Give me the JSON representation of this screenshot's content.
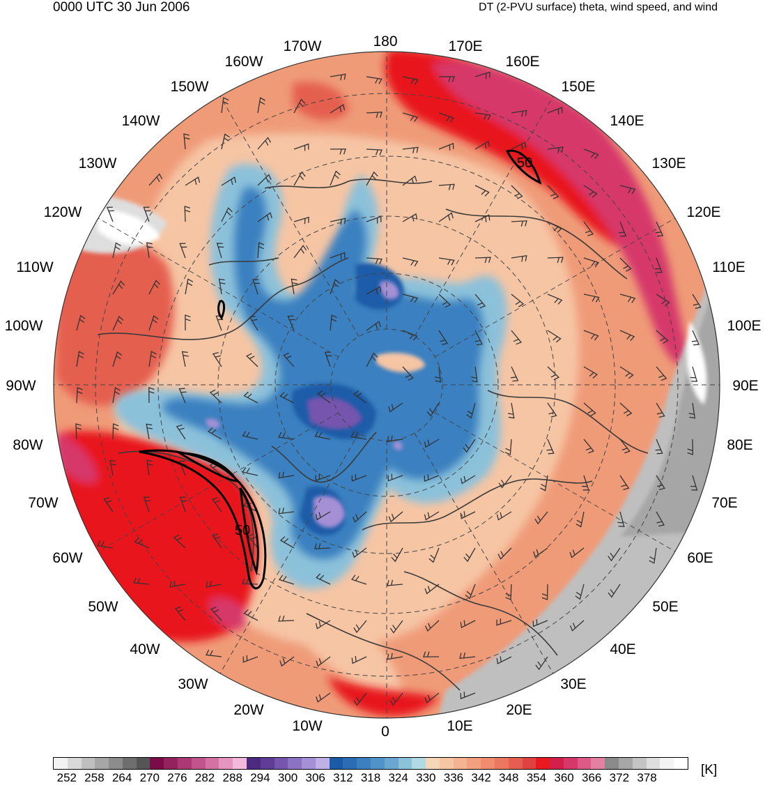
{
  "header": {
    "valid_time": "0000 UTC 30 Jun 2006",
    "field_title": "DT (2-PVU surface) theta, wind speed, and wind"
  },
  "map": {
    "projection": "north-polar-stereographic",
    "longitude_labels": [
      "180",
      "170E",
      "160E",
      "150E",
      "140E",
      "130E",
      "120E",
      "110E",
      "100E",
      "90E",
      "80E",
      "70E",
      "60E",
      "50E",
      "40E",
      "30E",
      "20E",
      "10E",
      "0",
      "10W",
      "20W",
      "30W",
      "40W",
      "50W",
      "60W",
      "70W",
      "80W",
      "90W",
      "100W",
      "110W",
      "120W",
      "130W",
      "140W",
      "150W",
      "160W",
      "170W"
    ],
    "contour_labels": [
      "50",
      "50"
    ],
    "colors": {
      "warm_background": "#ef9b78",
      "cold_core": "#2a6db5",
      "jet_contour": "#000000",
      "coastline": "#3a3a3a"
    }
  },
  "colorbar": {
    "colors": [
      "#f2f2f2",
      "#d9d9d9",
      "#bfbfbf",
      "#a6a6a6",
      "#8c8c8c",
      "#6e6e6e",
      "#555555",
      "#7a0c4a",
      "#93225e",
      "#ab3a74",
      "#c1558b",
      "#d472a4",
      "#e595c0",
      "#f2b9dc",
      "#4b2a7f",
      "#5f3c96",
      "#7555ad",
      "#8c72c3",
      "#a590d6",
      "#bfb0e6",
      "#1a5ba8",
      "#2a6db5",
      "#3b80c0",
      "#4f93c9",
      "#6aa8d2",
      "#8cc1da",
      "#b0dae4",
      "#f5d7b8",
      "#f6c5a4",
      "#f4b391",
      "#f2a07f",
      "#ef8d6e",
      "#ea775e",
      "#e55e4f",
      "#e04141",
      "#e8191f",
      "#d41f4a",
      "#d6386a",
      "#dc5a85",
      "#e481a2",
      "#8a8a8a",
      "#a6a6a6",
      "#c4c4c4",
      "#dedede",
      "#f4f4f4",
      "#ffffff"
    ],
    "tick_labels": [
      "252",
      "258",
      "264",
      "270",
      "276",
      "282",
      "288",
      "294",
      "300",
      "306",
      "312",
      "318",
      "324",
      "330",
      "336",
      "342",
      "348",
      "354",
      "360",
      "366",
      "372",
      "378"
    ],
    "unit": "[K]"
  }
}
